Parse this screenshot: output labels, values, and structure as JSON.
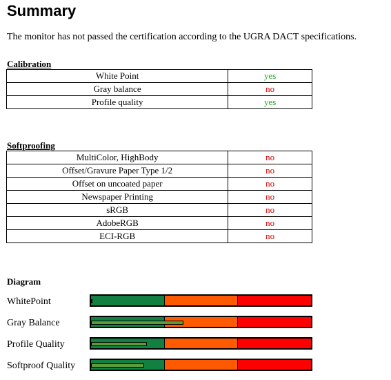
{
  "title": "Summary",
  "intro": "The monitor has not passed the certification according to the UGRA DACT specifications.",
  "calibration": {
    "heading": "Calibration",
    "rows": [
      {
        "label": "White Point",
        "value": "yes"
      },
      {
        "label": "Gray balance",
        "value": "no"
      },
      {
        "label": "Profile quality",
        "value": "yes"
      }
    ]
  },
  "softproofing": {
    "heading": "Softproofing",
    "rows": [
      {
        "label": "MultiColor, HighBody",
        "value": "no"
      },
      {
        "label": "Offset/Gravure Paper Type 1/2",
        "value": "no"
      },
      {
        "label": "Offset on uncoated paper",
        "value": "no"
      },
      {
        "label": "Newspaper Printing",
        "value": "no"
      },
      {
        "label": "sRGB",
        "value": "no"
      },
      {
        "label": "AdobeRGB",
        "value": "no"
      },
      {
        "label": "ECI-RGB",
        "value": "no"
      }
    ]
  },
  "diagram": {
    "heading": "Diagram",
    "colors": {
      "good": "#118040",
      "medium": "#ff5a00",
      "bad": "#ff0000",
      "indicator": "#5c9a3a"
    },
    "rows": [
      {
        "label": "WhitePoint",
        "level": 0.005
      },
      {
        "label": "Gray Balance",
        "level": 0.42
      },
      {
        "label": "Profile Quality",
        "level": 0.255
      },
      {
        "label": "Softproof Quality",
        "level": 0.24
      }
    ]
  }
}
